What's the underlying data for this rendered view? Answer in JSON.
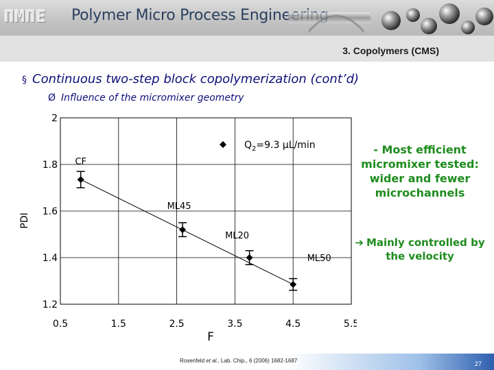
{
  "header": {
    "logo_text": "ΠMΠE",
    "title": "Polymer Micro Process Engineering"
  },
  "slide": {
    "section_title": "3. Copolymers (CMS)",
    "main_bullet_marker": "§",
    "main_bullet": "Continuous two-step block copolymerization (cont’d)",
    "sub_bullet_marker": "Ø",
    "sub_bullet": "Influence of the micromixer geometry",
    "note1": "- Most efficient micromixer tested: wider and fewer microchannels",
    "note2_arrow": "➔",
    "note2": "Mainly controlled by the velocity",
    "citation_pre": "Rosenfeld ",
    "citation_em": "et al.",
    "citation_post": ", Lab. Chip., 6 (2006) 1682-1687",
    "page_number": "27"
  },
  "colors": {
    "title_blue": "#0f0f78",
    "note_green": "#1e8c1e",
    "banner_text": "#2a3f5f"
  },
  "chart_data": {
    "type": "scatter",
    "title": "",
    "xlabel": "F",
    "ylabel": "PDI",
    "xlim": [
      0.5,
      5.5
    ],
    "ylim": [
      1.2,
      2.0
    ],
    "xticks": [
      0.5,
      1.5,
      2.5,
      3.5,
      4.5,
      5.5
    ],
    "xtick_labels": [
      "0.5",
      "1.5",
      "2.5",
      "3.5",
      "4.5",
      "5.5"
    ],
    "yticks": [
      1.2,
      1.4,
      1.6,
      1.8,
      2.0
    ],
    "ytick_labels": [
      "1.2",
      "1.4",
      "1.6",
      "1.8",
      "2"
    ],
    "grid": true,
    "legend": {
      "position": "top-right",
      "label_prefix": "Q",
      "label_sub": "2",
      "label_suffix": "=9.3 µL/min"
    },
    "points": [
      {
        "label": "CF",
        "x": 0.85,
        "y": 1.735,
        "err": 0.035
      },
      {
        "label": "ML45",
        "x": 2.6,
        "y": 1.52,
        "err": 0.03
      },
      {
        "label": "ML20",
        "x": 3.75,
        "y": 1.4,
        "err": 0.03
      },
      {
        "label": "ML50",
        "x": 4.5,
        "y": 1.285,
        "err": 0.025
      }
    ],
    "trendline": {
      "x": [
        0.85,
        4.5
      ],
      "y": [
        1.735,
        1.285
      ]
    }
  }
}
